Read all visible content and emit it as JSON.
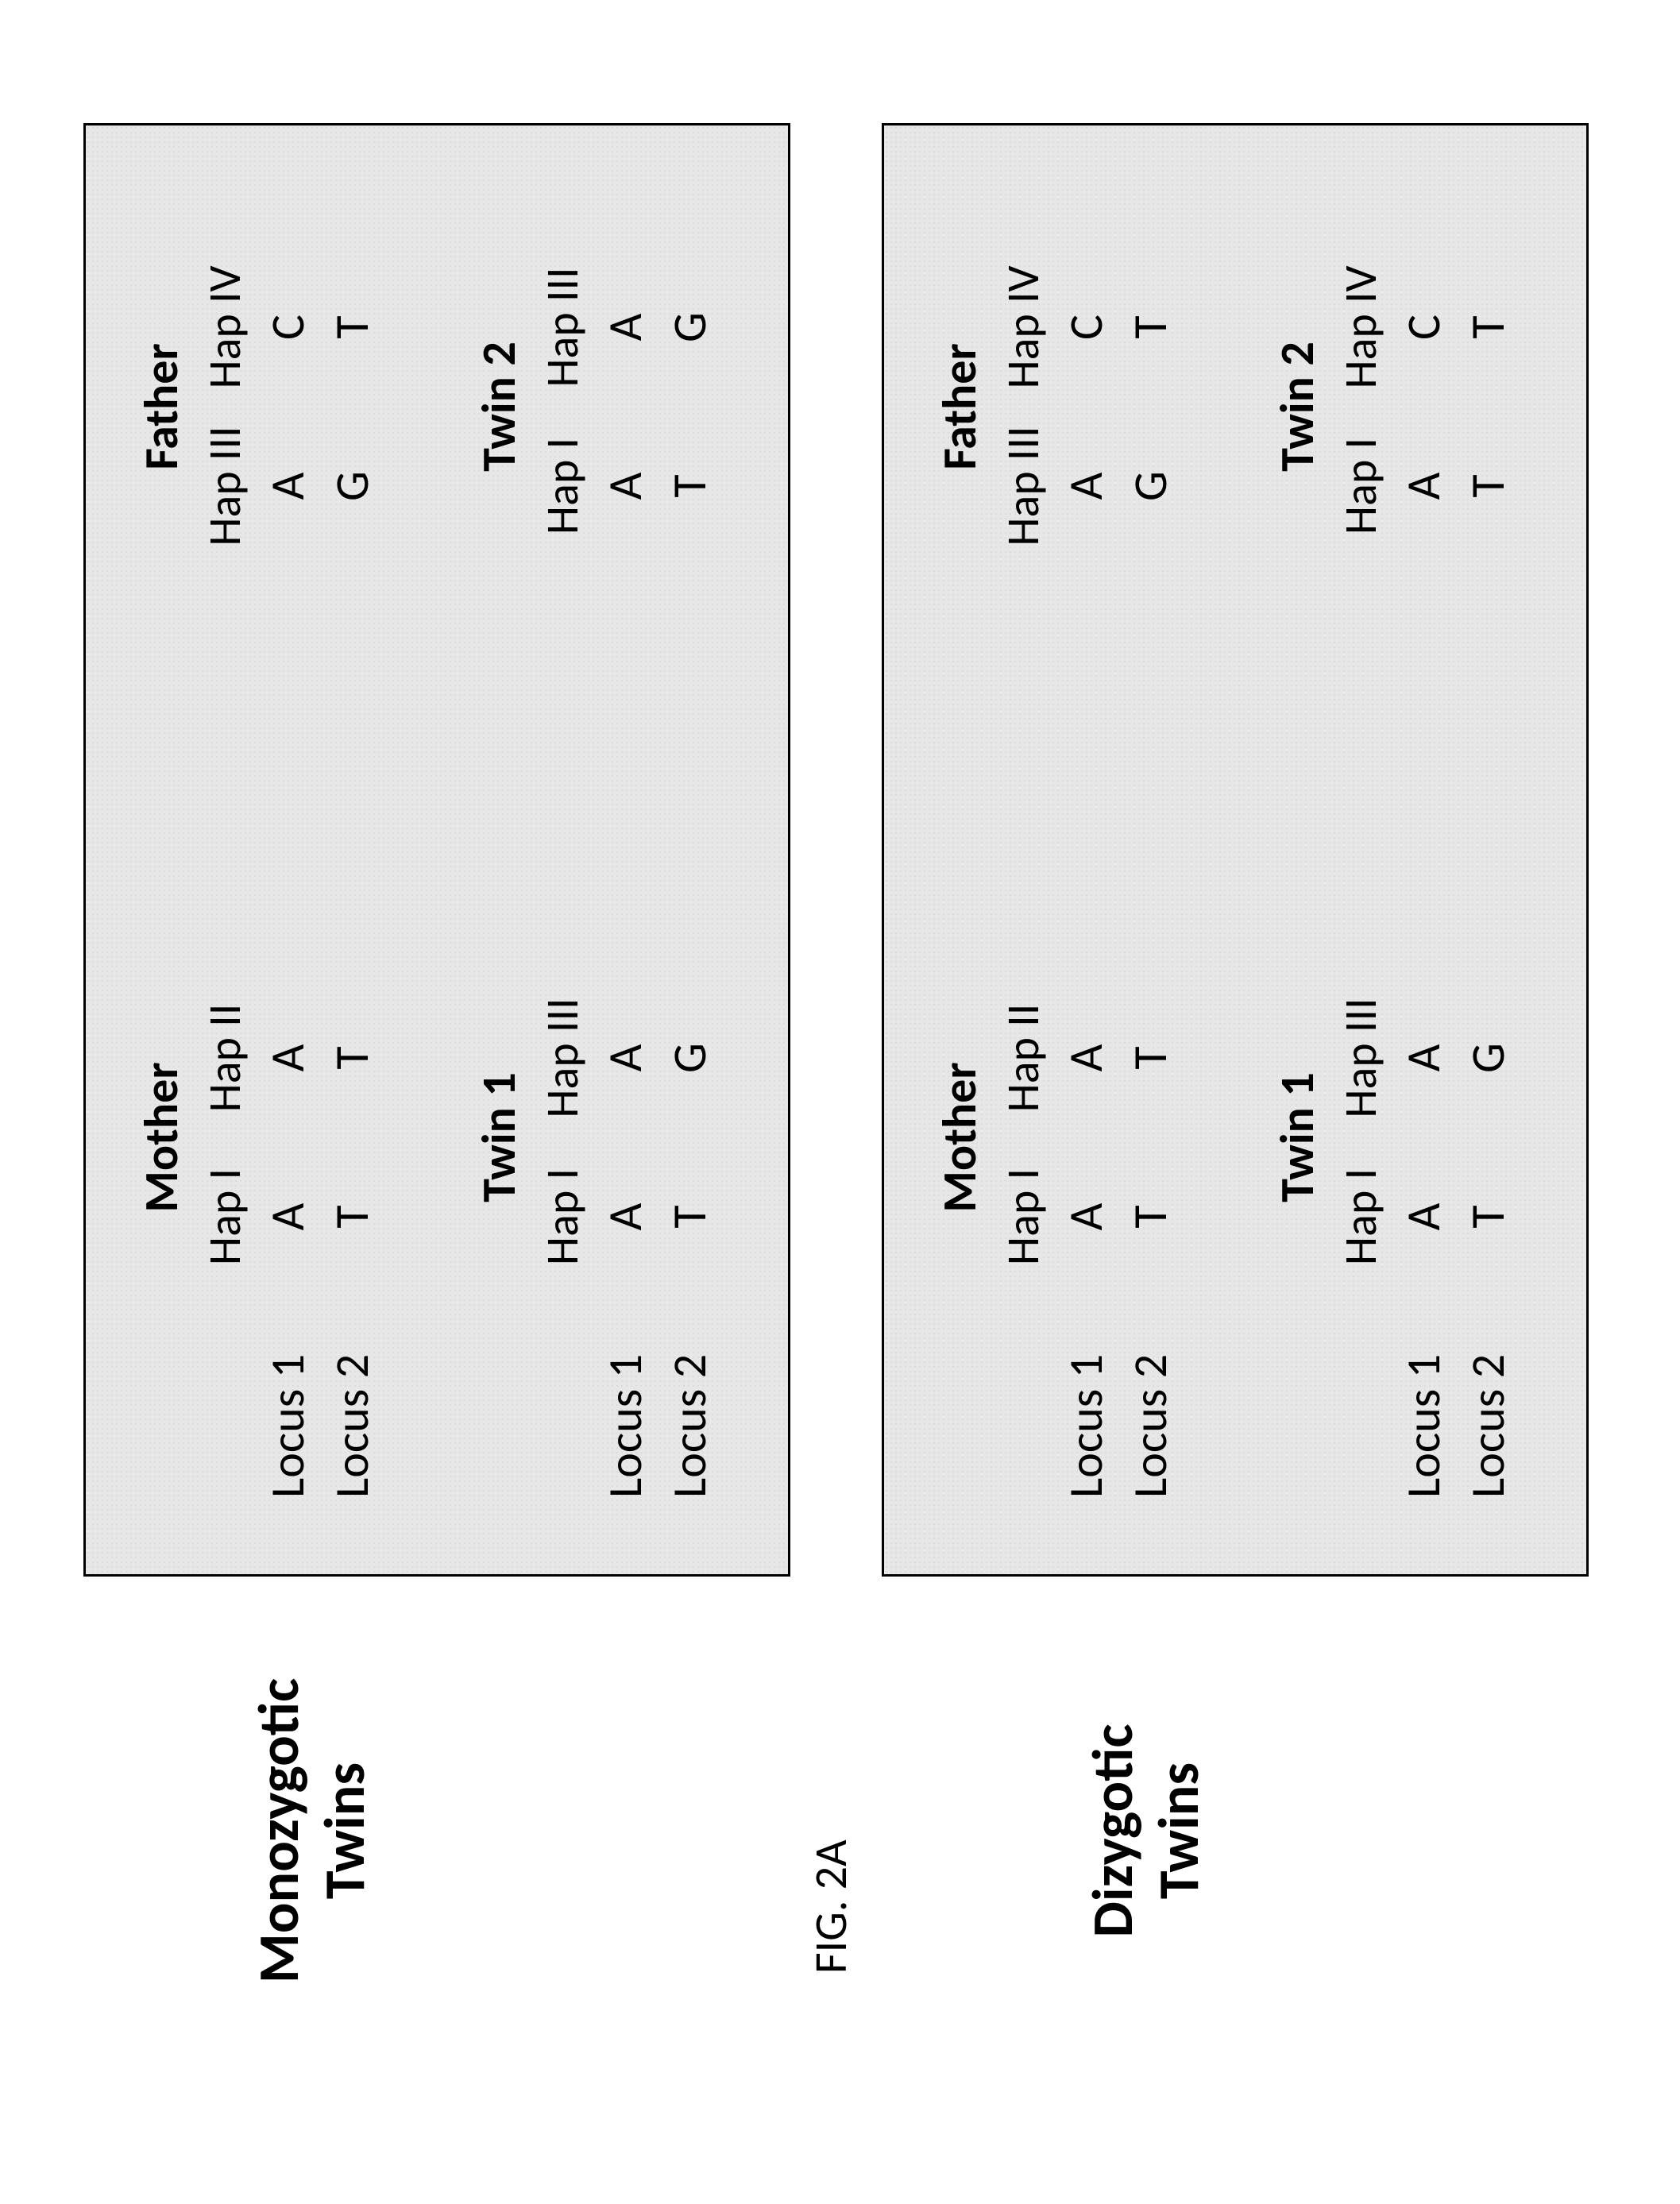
{
  "figure_label": "FIG. 2A",
  "sections": {
    "monozygotic": {
      "label_line1": "Monozygotic",
      "label_line2": "Twins"
    },
    "dizygotic": {
      "label_line1": "Dizygotic",
      "label_line2": "Twins"
    }
  },
  "row_labels": {
    "locus1": "Locus 1",
    "locus2": "Locus 2"
  },
  "panels": {
    "monozygotic": {
      "mother": {
        "title": "Mother",
        "hap_a": "Hap I",
        "hap_b": "Hap II",
        "locus1": [
          "A",
          "A"
        ],
        "locus2": [
          "T",
          "T"
        ]
      },
      "father": {
        "title": "Father",
        "hap_a": "Hap III",
        "hap_b": "Hap IV",
        "locus1": [
          "A",
          "C"
        ],
        "locus2": [
          "G",
          "T"
        ]
      },
      "twin1": {
        "title": "Twin 1",
        "hap_a": "Hap I",
        "hap_b": "Hap III",
        "locus1": [
          "A",
          "A"
        ],
        "locus2": [
          "T",
          "G"
        ]
      },
      "twin2": {
        "title": "Twin 2",
        "hap_a": "Hap I",
        "hap_b": "Hap III",
        "locus1": [
          "A",
          "A"
        ],
        "locus2": [
          "T",
          "G"
        ]
      }
    },
    "dizygotic": {
      "mother": {
        "title": "Mother",
        "hap_a": "Hap I",
        "hap_b": "Hap II",
        "locus1": [
          "A",
          "A"
        ],
        "locus2": [
          "T",
          "T"
        ]
      },
      "father": {
        "title": "Father",
        "hap_a": "Hap III",
        "hap_b": "Hap IV",
        "locus1": [
          "A",
          "C"
        ],
        "locus2": [
          "G",
          "T"
        ]
      },
      "twin1": {
        "title": "Twin 1",
        "hap_a": "Hap I",
        "hap_b": "Hap III",
        "locus1": [
          "A",
          "A"
        ],
        "locus2": [
          "T",
          "G"
        ]
      },
      "twin2": {
        "title": "Twin 2",
        "hap_a": "Hap I",
        "hap_b": "Hap IV",
        "locus1": [
          "A",
          "C"
        ],
        "locus2": [
          "T",
          "T"
        ]
      }
    }
  },
  "style": {
    "background_color": "#ffffff",
    "panel_fill": "#e7e7e7",
    "panel_border": "#000000",
    "text_color": "#000000",
    "title_fontsize": 72,
    "body_fontsize": 60,
    "figlabel_fontsize": 58
  }
}
